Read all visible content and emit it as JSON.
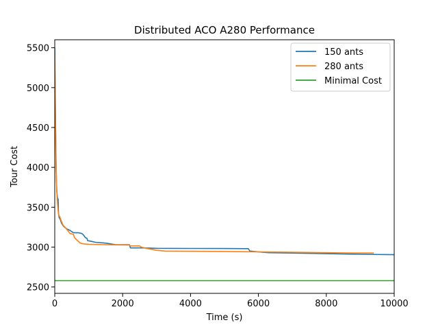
{
  "chart_data": {
    "type": "line",
    "title": "Distributed ACO A280 Performance",
    "xlabel": "Time (s)",
    "ylabel": "Tour Cost",
    "xlim": [
      0,
      10000
    ],
    "ylim": [
      2420,
      5600
    ],
    "xticks": [
      0,
      2000,
      4000,
      6000,
      8000,
      10000
    ],
    "yticks": [
      2500,
      3000,
      3500,
      4000,
      4500,
      5000,
      5500
    ],
    "grid": false,
    "legend_position": "top-right",
    "series": [
      {
        "name": "150 ants",
        "color": "#1f77b4",
        "points": [
          [
            0,
            5500
          ],
          [
            20,
            4700
          ],
          [
            40,
            4000
          ],
          [
            60,
            3700
          ],
          [
            80,
            3620
          ],
          [
            100,
            3600
          ],
          [
            110,
            3420
          ],
          [
            130,
            3370
          ],
          [
            160,
            3350
          ],
          [
            200,
            3300
          ],
          [
            260,
            3260
          ],
          [
            350,
            3230
          ],
          [
            450,
            3210
          ],
          [
            550,
            3180
          ],
          [
            700,
            3180
          ],
          [
            800,
            3170
          ],
          [
            850,
            3150
          ],
          [
            900,
            3120
          ],
          [
            950,
            3110
          ],
          [
            970,
            3080
          ],
          [
            1050,
            3075
          ],
          [
            1200,
            3060
          ],
          [
            1500,
            3050
          ],
          [
            1800,
            3030
          ],
          [
            2200,
            3030
          ],
          [
            2230,
            2990
          ],
          [
            2600,
            2990
          ],
          [
            3000,
            2985
          ],
          [
            4000,
            2983
          ],
          [
            5000,
            2982
          ],
          [
            5700,
            2980
          ],
          [
            5750,
            2950
          ],
          [
            6000,
            2940
          ],
          [
            6300,
            2930
          ],
          [
            7000,
            2925
          ],
          [
            8000,
            2918
          ],
          [
            9000,
            2910
          ],
          [
            10000,
            2905
          ]
        ]
      },
      {
        "name": "280 ants",
        "color": "#ff7f0e",
        "points": [
          [
            0,
            5400
          ],
          [
            20,
            4600
          ],
          [
            40,
            4000
          ],
          [
            60,
            3700
          ],
          [
            80,
            3550
          ],
          [
            100,
            3450
          ],
          [
            120,
            3400
          ],
          [
            150,
            3380
          ],
          [
            200,
            3320
          ],
          [
            250,
            3270
          ],
          [
            300,
            3250
          ],
          [
            400,
            3200
          ],
          [
            450,
            3170
          ],
          [
            550,
            3160
          ],
          [
            580,
            3120
          ],
          [
            650,
            3090
          ],
          [
            750,
            3050
          ],
          [
            850,
            3040
          ],
          [
            1000,
            3035
          ],
          [
            1500,
            3030
          ],
          [
            2200,
            3025
          ],
          [
            2230,
            3015
          ],
          [
            2500,
            3015
          ],
          [
            2550,
            3000
          ],
          [
            2700,
            2985
          ],
          [
            3000,
            2960
          ],
          [
            3250,
            2950
          ],
          [
            4000,
            2948
          ],
          [
            5000,
            2945
          ],
          [
            6000,
            2940
          ],
          [
            7000,
            2935
          ],
          [
            8000,
            2930
          ],
          [
            9000,
            2925
          ],
          [
            9400,
            2925
          ]
        ]
      },
      {
        "name": "Minimal Cost",
        "color": "#2ca02c",
        "points": [
          [
            0,
            2579
          ],
          [
            10000,
            2579
          ]
        ]
      }
    ]
  }
}
